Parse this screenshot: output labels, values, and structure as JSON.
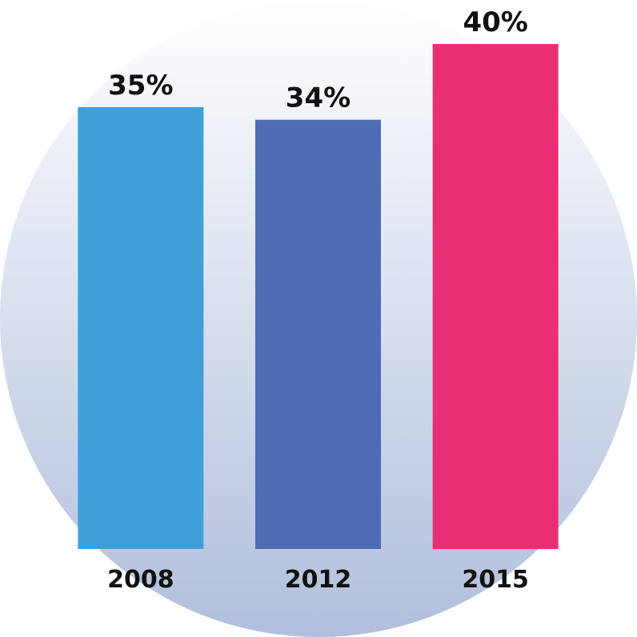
{
  "chart_data": {
    "type": "bar",
    "categories": [
      "2008",
      "2012",
      "2015"
    ],
    "values": [
      35,
      34,
      40
    ],
    "value_labels": [
      "35%",
      "34%",
      "40%"
    ],
    "colors": [
      "#3fa0d9",
      "#4e6cb4",
      "#e92f73"
    ]
  }
}
